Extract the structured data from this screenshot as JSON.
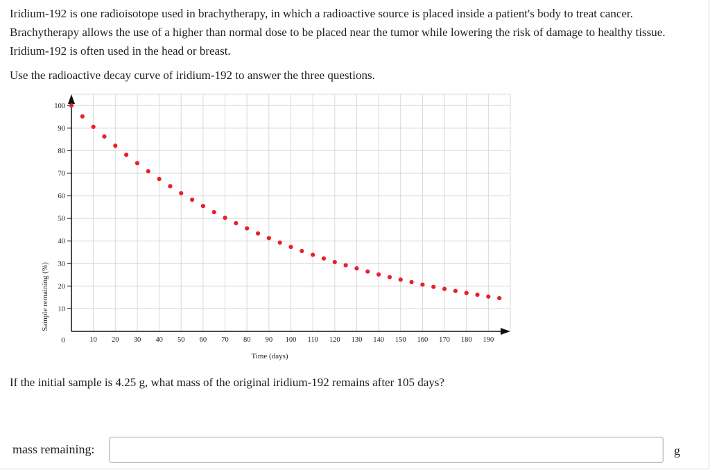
{
  "intro": "Iridium-192 is one radioisotope used in brachytherapy, in which a radioactive source is placed inside a patient's body to treat cancer. Brachytherapy allows the use of a higher than normal dose to be placed near the tumor while lowering the risk of damage to healthy tissue. Iridium-192 is often used in the head or breast.",
  "instruction": "Use the radioactive decay curve of iridium-192 to answer the three questions.",
  "question": "If the initial sample is 4.25 g, what mass of the original iridium-192 remains after 105 days?",
  "answer": {
    "label": "mass remaining:",
    "value": "",
    "placeholder": "",
    "unit": "g"
  },
  "chart_data": {
    "type": "scatter",
    "title": "",
    "xlabel": "Time (days)",
    "ylabel": "Sample remaining (%)",
    "xlim": [
      0,
      200
    ],
    "ylim": [
      0,
      105
    ],
    "grid": true,
    "x_ticks": [
      "10",
      "20",
      "30",
      "40",
      "50",
      "60",
      "70",
      "80",
      "90",
      "100",
      "110",
      "120",
      "130",
      "140",
      "150",
      "160",
      "170",
      "180",
      "190"
    ],
    "y_ticks": [
      "100",
      "90",
      "80",
      "70",
      "60",
      "50",
      "40",
      "30",
      "20",
      "10"
    ],
    "origin_label": "0",
    "marker_color": "#e8202a",
    "series": [
      {
        "x": [
          0,
          5,
          10,
          15,
          20,
          25,
          30,
          35,
          40,
          45,
          50,
          55,
          60,
          65,
          70,
          75,
          80,
          85,
          90,
          95,
          100,
          105,
          110,
          115,
          120,
          125,
          130,
          135,
          140,
          145,
          150,
          155,
          160,
          165,
          170,
          175,
          180,
          185,
          190,
          195
        ],
        "y": [
          100,
          95.2,
          90.6,
          86.3,
          82.2,
          78.2,
          74.5,
          70.9,
          67.5,
          64.3,
          61.2,
          58.3,
          55.5,
          52.8,
          50.3,
          47.9,
          45.6,
          43.4,
          41.3,
          39.3,
          37.4,
          35.6,
          33.9,
          32.3,
          30.7,
          29.3,
          27.9,
          26.5,
          25.2,
          24.0,
          22.9,
          21.8,
          20.7,
          19.7,
          18.8,
          17.9,
          17.0,
          16.2,
          15.4,
          14.7
        ]
      }
    ]
  }
}
